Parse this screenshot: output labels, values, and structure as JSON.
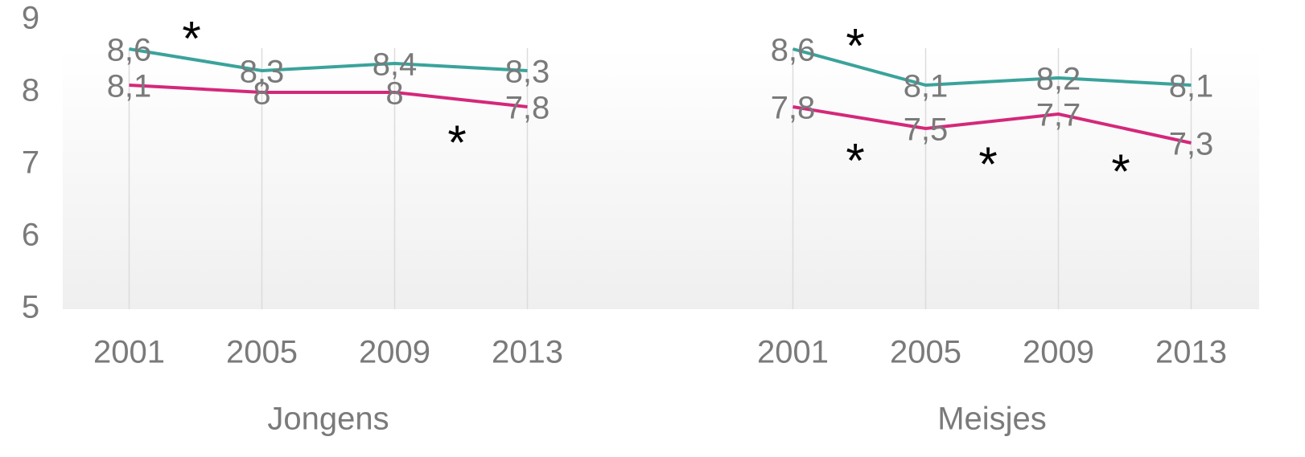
{
  "chart_data": {
    "type": "line",
    "ylim": [
      5,
      9
    ],
    "yticks": [
      5,
      6,
      7,
      8,
      9
    ],
    "groups": [
      {
        "label": "Jongens",
        "categories": [
          "2001",
          "2005",
          "2009",
          "2013"
        ],
        "series": [
          {
            "color": "#3aa39b",
            "values": [
              8.6,
              8.3,
              8.4,
              8.3
            ],
            "value_labels": [
              "8,6",
              "8,3",
              "8,4",
              "8,3"
            ]
          },
          {
            "color": "#d4287a",
            "values": [
              8.1,
              8,
              8,
              7.8
            ],
            "value_labels": [
              "8,1",
              "8",
              "8",
              "7,8"
            ]
          }
        ],
        "annotations": [
          {
            "text": "*",
            "series": 0,
            "segment": 0,
            "side": "above"
          },
          {
            "text": "*",
            "series": 1,
            "segment": 2,
            "side": "below"
          }
        ]
      },
      {
        "label": "Meisjes",
        "categories": [
          "2001",
          "2005",
          "2009",
          "2013"
        ],
        "series": [
          {
            "color": "#3aa39b",
            "values": [
              8.6,
              8.1,
              8.2,
              8.1
            ],
            "value_labels": [
              "8,6",
              "8,1",
              "8,2",
              "8,1"
            ]
          },
          {
            "color": "#d4287a",
            "values": [
              7.8,
              7.5,
              7.7,
              7.3
            ],
            "value_labels": [
              "7,8",
              "7,5",
              "7,7",
              "7,3"
            ]
          }
        ],
        "annotations": [
          {
            "text": "*",
            "series": 0,
            "segment": 0,
            "side": "above"
          },
          {
            "text": "*",
            "series": 1,
            "segment": 0,
            "side": "below"
          },
          {
            "text": "*",
            "series": 1,
            "segment": 1,
            "side": "below"
          },
          {
            "text": "*",
            "series": 1,
            "segment": 2,
            "side": "below"
          }
        ]
      }
    ]
  }
}
